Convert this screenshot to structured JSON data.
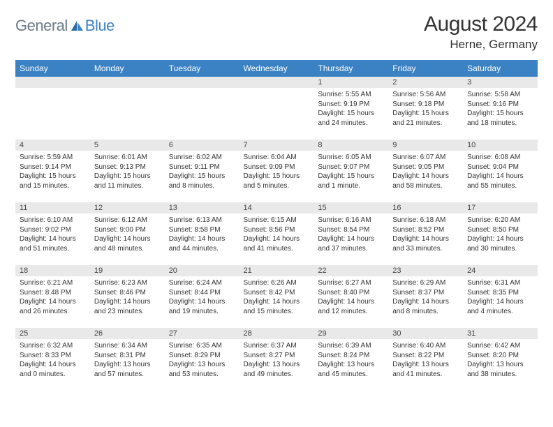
{
  "logo": {
    "part1": "General",
    "part2": "Blue"
  },
  "title": "August 2024",
  "location": "Herne, Germany",
  "colors": {
    "header_bg": "#3b82c4",
    "daynum_bg": "#e9e9e9",
    "logo_gray": "#6b7a86",
    "logo_blue": "#3b82c4",
    "text": "#333333",
    "page_bg": "#ffffff"
  },
  "columns": [
    "Sunday",
    "Monday",
    "Tuesday",
    "Wednesday",
    "Thursday",
    "Friday",
    "Saturday"
  ],
  "weeks": [
    [
      {
        "day": "",
        "sunrise": "",
        "sunset": "",
        "daylight": ""
      },
      {
        "day": "",
        "sunrise": "",
        "sunset": "",
        "daylight": ""
      },
      {
        "day": "",
        "sunrise": "",
        "sunset": "",
        "daylight": ""
      },
      {
        "day": "",
        "sunrise": "",
        "sunset": "",
        "daylight": ""
      },
      {
        "day": "1",
        "sunrise": "Sunrise: 5:55 AM",
        "sunset": "Sunset: 9:19 PM",
        "daylight": "Daylight: 15 hours and 24 minutes."
      },
      {
        "day": "2",
        "sunrise": "Sunrise: 5:56 AM",
        "sunset": "Sunset: 9:18 PM",
        "daylight": "Daylight: 15 hours and 21 minutes."
      },
      {
        "day": "3",
        "sunrise": "Sunrise: 5:58 AM",
        "sunset": "Sunset: 9:16 PM",
        "daylight": "Daylight: 15 hours and 18 minutes."
      }
    ],
    [
      {
        "day": "4",
        "sunrise": "Sunrise: 5:59 AM",
        "sunset": "Sunset: 9:14 PM",
        "daylight": "Daylight: 15 hours and 15 minutes."
      },
      {
        "day": "5",
        "sunrise": "Sunrise: 6:01 AM",
        "sunset": "Sunset: 9:13 PM",
        "daylight": "Daylight: 15 hours and 11 minutes."
      },
      {
        "day": "6",
        "sunrise": "Sunrise: 6:02 AM",
        "sunset": "Sunset: 9:11 PM",
        "daylight": "Daylight: 15 hours and 8 minutes."
      },
      {
        "day": "7",
        "sunrise": "Sunrise: 6:04 AM",
        "sunset": "Sunset: 9:09 PM",
        "daylight": "Daylight: 15 hours and 5 minutes."
      },
      {
        "day": "8",
        "sunrise": "Sunrise: 6:05 AM",
        "sunset": "Sunset: 9:07 PM",
        "daylight": "Daylight: 15 hours and 1 minute."
      },
      {
        "day": "9",
        "sunrise": "Sunrise: 6:07 AM",
        "sunset": "Sunset: 9:05 PM",
        "daylight": "Daylight: 14 hours and 58 minutes."
      },
      {
        "day": "10",
        "sunrise": "Sunrise: 6:08 AM",
        "sunset": "Sunset: 9:04 PM",
        "daylight": "Daylight: 14 hours and 55 minutes."
      }
    ],
    [
      {
        "day": "11",
        "sunrise": "Sunrise: 6:10 AM",
        "sunset": "Sunset: 9:02 PM",
        "daylight": "Daylight: 14 hours and 51 minutes."
      },
      {
        "day": "12",
        "sunrise": "Sunrise: 6:12 AM",
        "sunset": "Sunset: 9:00 PM",
        "daylight": "Daylight: 14 hours and 48 minutes."
      },
      {
        "day": "13",
        "sunrise": "Sunrise: 6:13 AM",
        "sunset": "Sunset: 8:58 PM",
        "daylight": "Daylight: 14 hours and 44 minutes."
      },
      {
        "day": "14",
        "sunrise": "Sunrise: 6:15 AM",
        "sunset": "Sunset: 8:56 PM",
        "daylight": "Daylight: 14 hours and 41 minutes."
      },
      {
        "day": "15",
        "sunrise": "Sunrise: 6:16 AM",
        "sunset": "Sunset: 8:54 PM",
        "daylight": "Daylight: 14 hours and 37 minutes."
      },
      {
        "day": "16",
        "sunrise": "Sunrise: 6:18 AM",
        "sunset": "Sunset: 8:52 PM",
        "daylight": "Daylight: 14 hours and 33 minutes."
      },
      {
        "day": "17",
        "sunrise": "Sunrise: 6:20 AM",
        "sunset": "Sunset: 8:50 PM",
        "daylight": "Daylight: 14 hours and 30 minutes."
      }
    ],
    [
      {
        "day": "18",
        "sunrise": "Sunrise: 6:21 AM",
        "sunset": "Sunset: 8:48 PM",
        "daylight": "Daylight: 14 hours and 26 minutes."
      },
      {
        "day": "19",
        "sunrise": "Sunrise: 6:23 AM",
        "sunset": "Sunset: 8:46 PM",
        "daylight": "Daylight: 14 hours and 23 minutes."
      },
      {
        "day": "20",
        "sunrise": "Sunrise: 6:24 AM",
        "sunset": "Sunset: 8:44 PM",
        "daylight": "Daylight: 14 hours and 19 minutes."
      },
      {
        "day": "21",
        "sunrise": "Sunrise: 6:26 AM",
        "sunset": "Sunset: 8:42 PM",
        "daylight": "Daylight: 14 hours and 15 minutes."
      },
      {
        "day": "22",
        "sunrise": "Sunrise: 6:27 AM",
        "sunset": "Sunset: 8:40 PM",
        "daylight": "Daylight: 14 hours and 12 minutes."
      },
      {
        "day": "23",
        "sunrise": "Sunrise: 6:29 AM",
        "sunset": "Sunset: 8:37 PM",
        "daylight": "Daylight: 14 hours and 8 minutes."
      },
      {
        "day": "24",
        "sunrise": "Sunrise: 6:31 AM",
        "sunset": "Sunset: 8:35 PM",
        "daylight": "Daylight: 14 hours and 4 minutes."
      }
    ],
    [
      {
        "day": "25",
        "sunrise": "Sunrise: 6:32 AM",
        "sunset": "Sunset: 8:33 PM",
        "daylight": "Daylight: 14 hours and 0 minutes."
      },
      {
        "day": "26",
        "sunrise": "Sunrise: 6:34 AM",
        "sunset": "Sunset: 8:31 PM",
        "daylight": "Daylight: 13 hours and 57 minutes."
      },
      {
        "day": "27",
        "sunrise": "Sunrise: 6:35 AM",
        "sunset": "Sunset: 8:29 PM",
        "daylight": "Daylight: 13 hours and 53 minutes."
      },
      {
        "day": "28",
        "sunrise": "Sunrise: 6:37 AM",
        "sunset": "Sunset: 8:27 PM",
        "daylight": "Daylight: 13 hours and 49 minutes."
      },
      {
        "day": "29",
        "sunrise": "Sunrise: 6:39 AM",
        "sunset": "Sunset: 8:24 PM",
        "daylight": "Daylight: 13 hours and 45 minutes."
      },
      {
        "day": "30",
        "sunrise": "Sunrise: 6:40 AM",
        "sunset": "Sunset: 8:22 PM",
        "daylight": "Daylight: 13 hours and 41 minutes."
      },
      {
        "day": "31",
        "sunrise": "Sunrise: 6:42 AM",
        "sunset": "Sunset: 8:20 PM",
        "daylight": "Daylight: 13 hours and 38 minutes."
      }
    ]
  ]
}
